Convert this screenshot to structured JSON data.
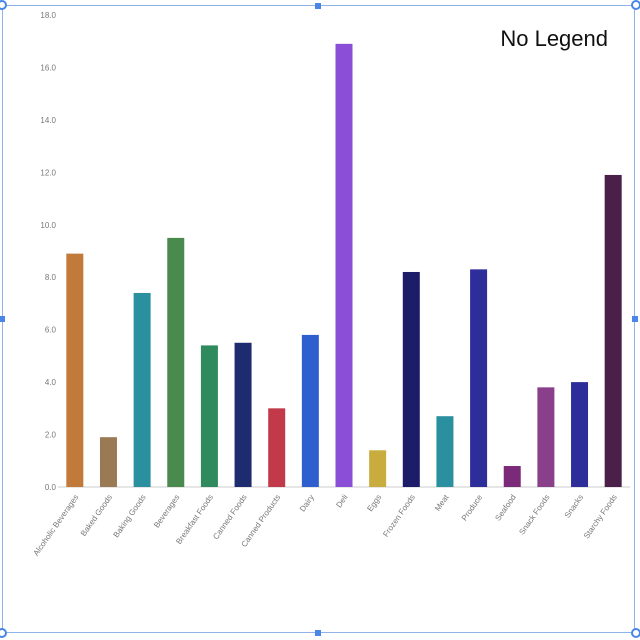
{
  "chart_data": {
    "type": "bar",
    "title": "",
    "xlabel": "",
    "ylabel": "",
    "annotation": "No Legend",
    "ylim": [
      0,
      18
    ],
    "ytick_labels": [
      "0.0",
      "2.0",
      "4.0",
      "6.0",
      "8.0",
      "10.0",
      "12.0",
      "14.0",
      "16.0",
      "18.0"
    ],
    "categories": [
      "Alcoholic Beverages",
      "Baked Goods",
      "Baking Goods",
      "Beverages",
      "Breakfast Foods",
      "Canned Foods",
      "Canned Products",
      "Dairy",
      "Deli",
      "Eggs",
      "Frozen Foods",
      "Meat",
      "Produce",
      "Seafood",
      "Snack Foods",
      "Snacks",
      "Starchy Foods"
    ],
    "values": [
      8.9,
      1.9,
      7.4,
      9.5,
      5.4,
      5.5,
      3.0,
      5.8,
      16.9,
      1.4,
      8.2,
      2.7,
      8.3,
      0.8,
      3.8,
      4.0,
      11.9
    ],
    "colors": [
      "#c27a3a",
      "#9a7a55",
      "#2a8f9e",
      "#4a8a4e",
      "#2f8a5e",
      "#1e2b6e",
      "#c23a4a",
      "#2f5fcf",
      "#8a4fd6",
      "#c8ac3e",
      "#1c1c68",
      "#2a8f9e",
      "#2e2e9a",
      "#7a2a78",
      "#8a3f8a",
      "#2e2e9a",
      "#4a2048"
    ],
    "grid": false,
    "legend": "none"
  }
}
